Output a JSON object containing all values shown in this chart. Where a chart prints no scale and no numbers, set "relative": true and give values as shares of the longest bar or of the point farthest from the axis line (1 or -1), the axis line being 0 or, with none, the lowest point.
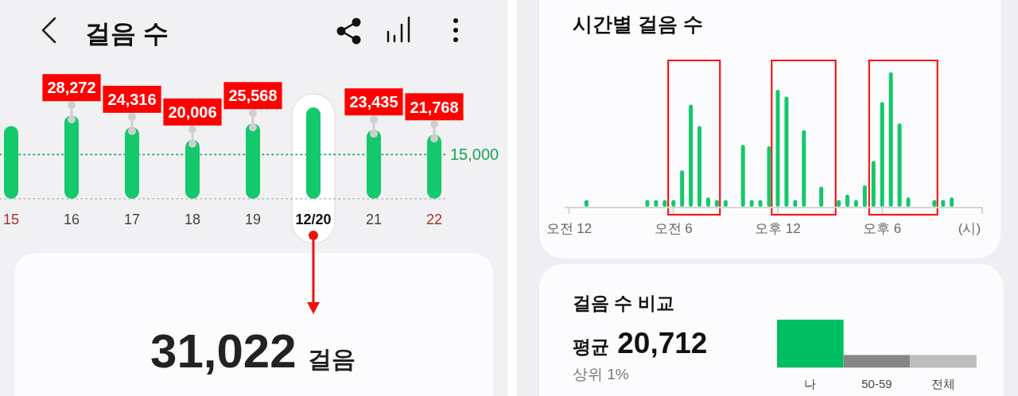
{
  "chart_data": [
    {
      "type": "bar",
      "title": "걸음 수",
      "categories": [
        "15",
        "16",
        "17",
        "18",
        "19",
        "12/20",
        "21",
        "22"
      ],
      "values": [
        24700,
        28272,
        24316,
        20006,
        25568,
        31022,
        23435,
        21768
      ],
      "value_labels": [
        null,
        "28,272",
        "24,316",
        "20,006",
        "25,568",
        null,
        "23,435",
        "21,768"
      ],
      "color": "#13c96b",
      "tick_labels": "x",
      "ref_lines": [
        {
          "axis": "y",
          "value": 15000,
          "label": "15,000",
          "color": "#1aa35a",
          "line_style": "dotted"
        }
      ],
      "bands": [
        {
          "axis": "x",
          "from": "12/20",
          "to": "12/20",
          "color": "#ffffff"
        }
      ],
      "annotations": [
        "31,022 걸음"
      ]
    },
    {
      "type": "bar",
      "title": "시간별 걸음 수",
      "categories": [
        "오전 12",
        null,
        null,
        null,
        null,
        null,
        null,
        null,
        null,
        null,
        null,
        null,
        "오전 6",
        null,
        null,
        null,
        null,
        null,
        null,
        null,
        null,
        null,
        null,
        null,
        "오후 12",
        null,
        null,
        null,
        null,
        null,
        null,
        null,
        null,
        null,
        null,
        null,
        "오후 6",
        null,
        null,
        null,
        null,
        null,
        null,
        null,
        null,
        null,
        null,
        null
      ],
      "values": [
        null,
        null,
        0.05,
        null,
        null,
        null,
        null,
        null,
        null,
        0.05,
        0.05,
        0.05,
        0.05,
        0.27,
        0.76,
        0.6,
        0.07,
        0.05,
        0.05,
        null,
        0.46,
        0.05,
        0.05,
        0.45,
        0.87,
        0.82,
        0.05,
        0.57,
        null,
        0.15,
        null,
        0.05,
        0.09,
        0.05,
        0.16,
        0.34,
        0.78,
        1,
        0.62,
        0.07,
        null,
        null,
        0.05,
        0.05,
        0.07,
        null,
        null,
        null
      ],
      "relative": true,
      "color": "#13c96b",
      "xlabel": "(시)"
    },
    {
      "type": "bar",
      "title": "걸음 수 비교",
      "categories": [
        "나",
        "50-59",
        "전체"
      ],
      "values": [
        1,
        0.26,
        0.26
      ],
      "colors": [
        "#00bf63",
        "#868686",
        "#bdbdbd"
      ],
      "relative": true,
      "annotations": [
        "평균 20,712",
        "상위 1%"
      ]
    }
  ]
}
